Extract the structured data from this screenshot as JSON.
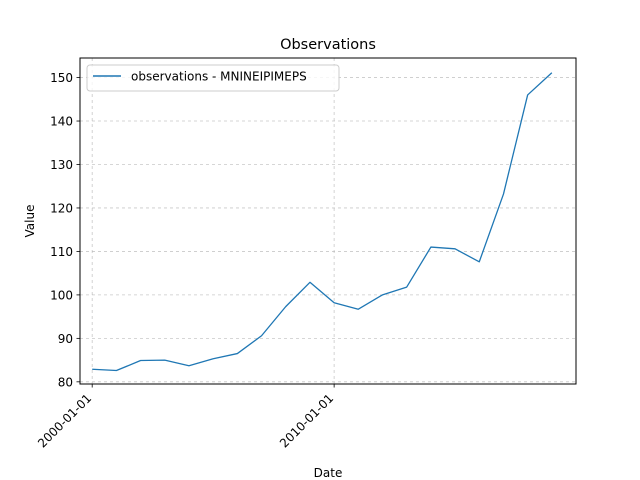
{
  "chart_data": {
    "type": "line",
    "title": "Observations",
    "xlabel": "Date",
    "ylabel": "Value",
    "grid": true,
    "legend_position": "top-left",
    "x_ticks": [
      "2000-01-01",
      "2010-01-01"
    ],
    "y_ticks": [
      80,
      90,
      100,
      110,
      120,
      130,
      140,
      150
    ],
    "xlim": [
      "1999-07-01",
      "2020-01-01"
    ],
    "ylim": [
      79.5,
      154.5
    ],
    "series": [
      {
        "name": "observations - MNINEIPIMEPS",
        "color": "#1f77b4",
        "x": [
          "2000-01-01",
          "2001-01-01",
          "2002-01-01",
          "2003-01-01",
          "2004-01-01",
          "2005-01-01",
          "2006-01-01",
          "2007-01-01",
          "2008-01-01",
          "2009-01-01",
          "2010-01-01",
          "2011-01-01",
          "2012-01-01",
          "2013-01-01",
          "2014-01-01",
          "2015-01-01",
          "2016-01-01",
          "2017-01-01",
          "2018-01-01",
          "2019-01-01"
        ],
        "values": [
          82.9,
          82.6,
          84.9,
          85.0,
          83.7,
          85.3,
          86.5,
          90.6,
          97.3,
          102.9,
          98.2,
          96.7,
          100.0,
          101.8,
          111.0,
          110.6,
          107.6,
          123.2,
          146.0,
          151.1
        ]
      }
    ]
  }
}
